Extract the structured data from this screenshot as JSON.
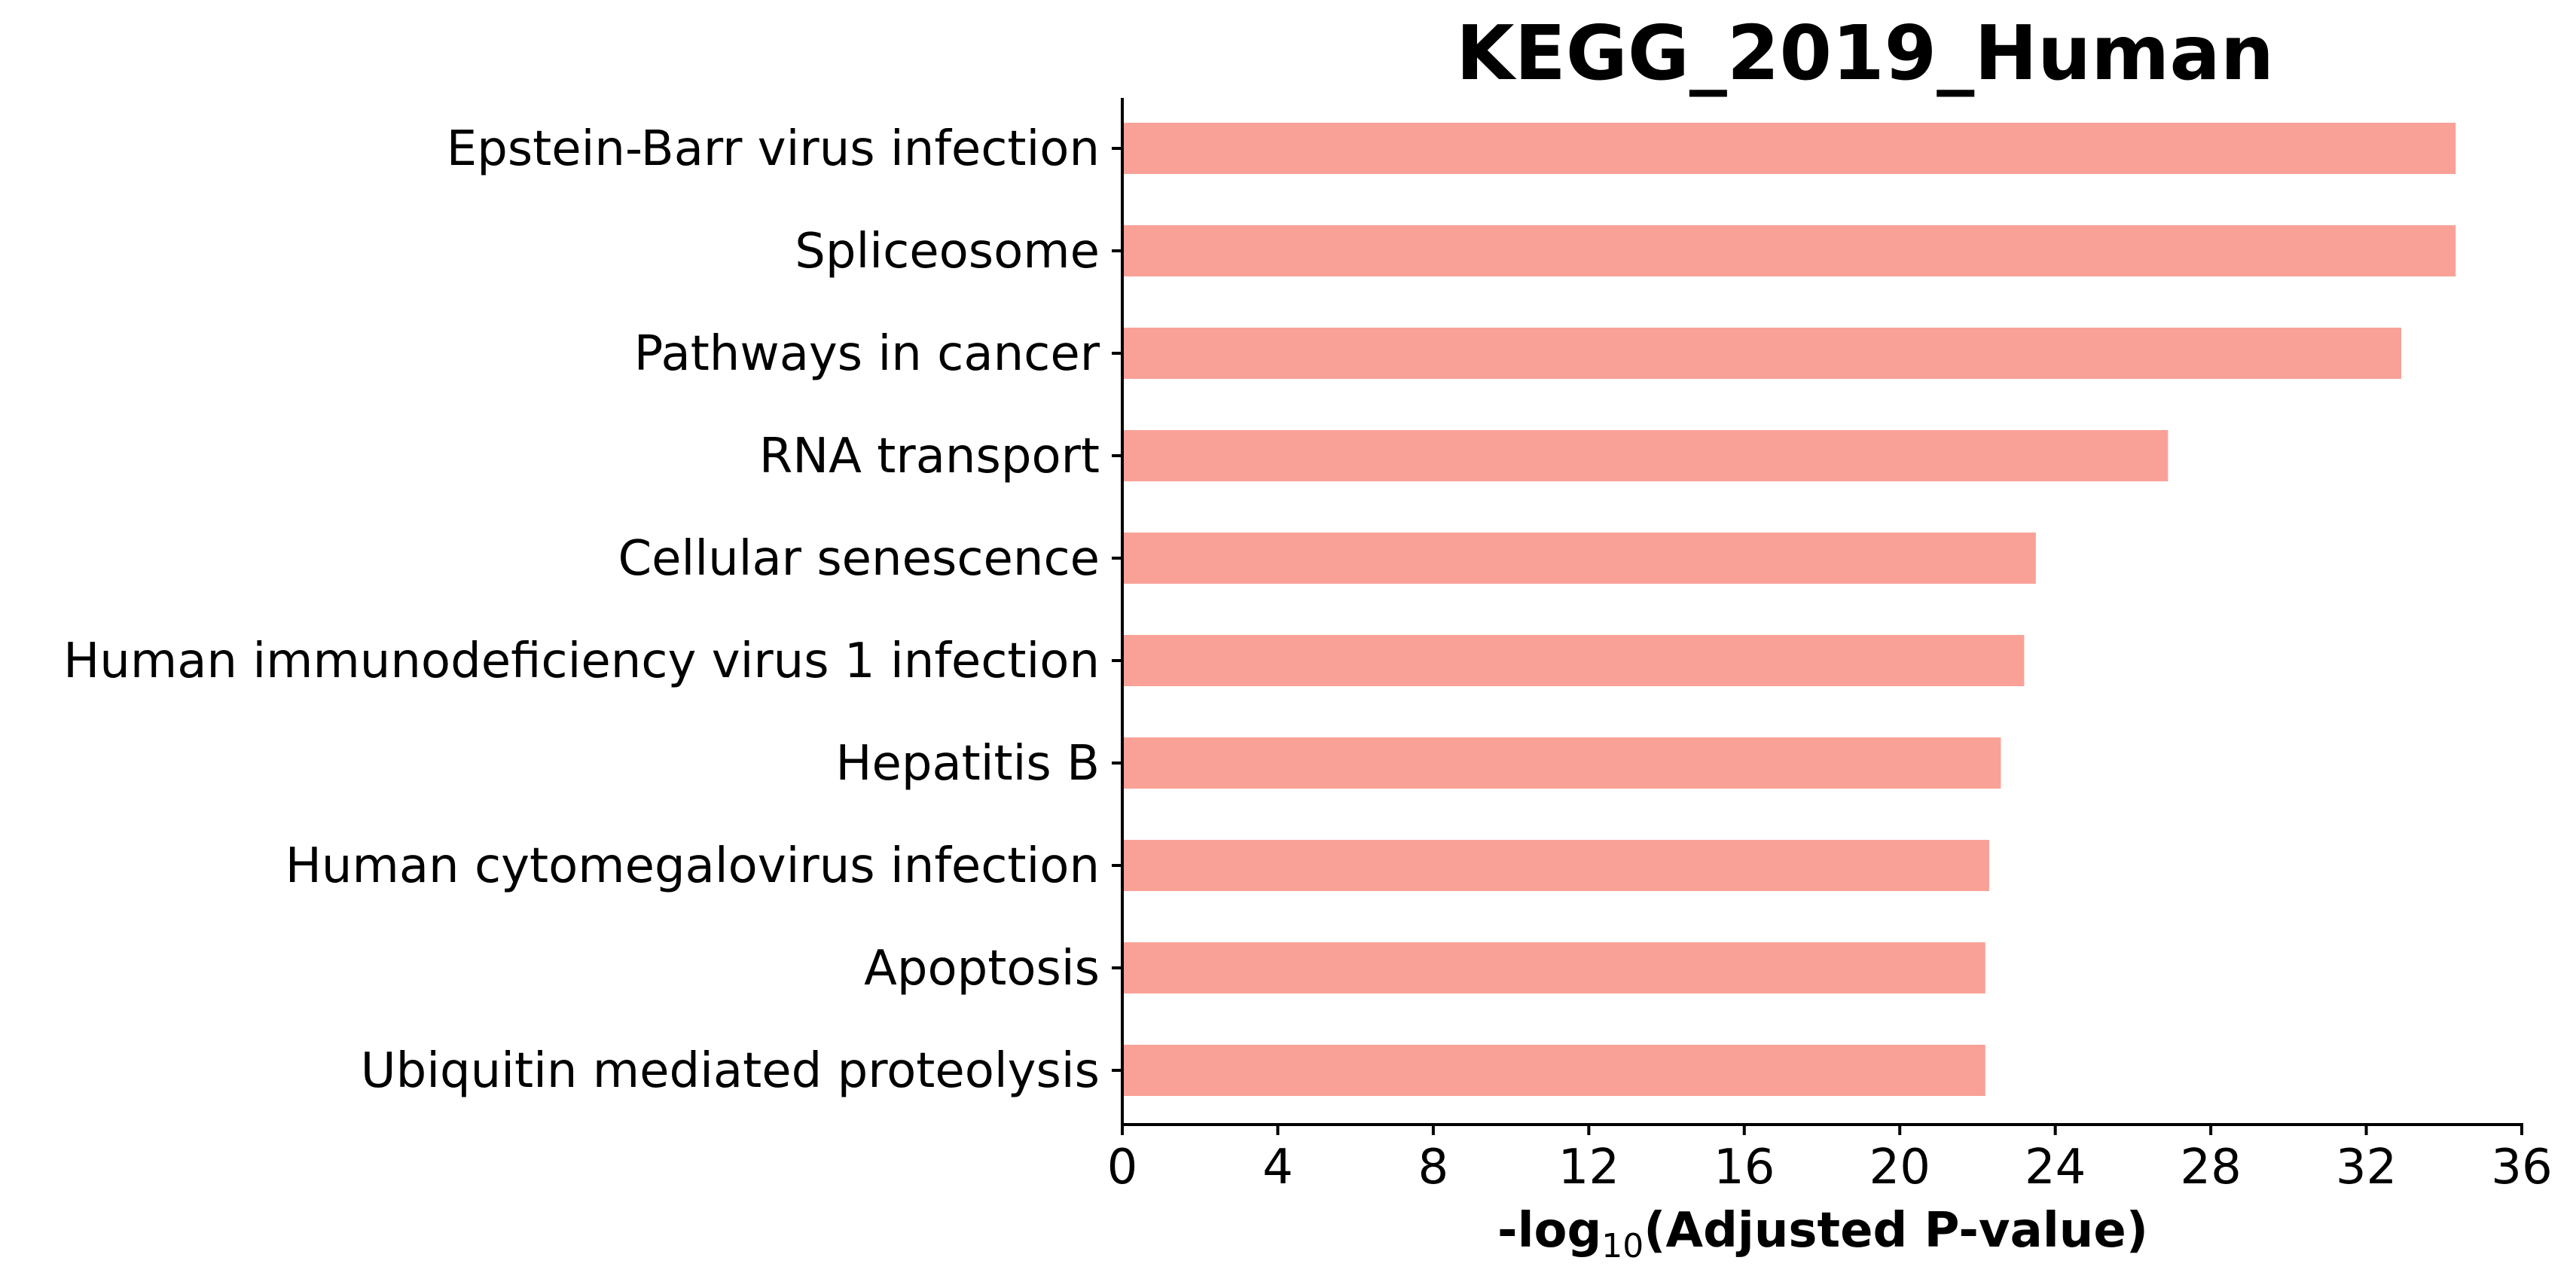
{
  "chart_data": {
    "type": "bar",
    "orientation": "horizontal",
    "title": "KEGG_2019_Human",
    "xlabel": {
      "prefix": "-log",
      "subscript": "10",
      "suffix": "(Adjusted P-value)"
    },
    "ylabel": "",
    "categories": [
      "Epstein-Barr virus infection",
      "Spliceosome",
      "Pathways in cancer",
      "RNA transport",
      "Cellular senescence",
      "Human immunodeficiency virus 1 infection",
      "Hepatitis B",
      "Human cytomegalovirus infection",
      "Apoptosis",
      "Ubiquitin mediated proteolysis"
    ],
    "values": [
      34.3,
      34.3,
      32.9,
      26.9,
      23.5,
      23.2,
      22.6,
      22.3,
      22.2,
      22.2
    ],
    "xlim": [
      0,
      36
    ],
    "xticks": [
      "0",
      "4",
      "8",
      "12",
      "16",
      "20",
      "24",
      "28",
      "32",
      "36"
    ],
    "bar_color": "#f9a197",
    "grid": false,
    "legend": "none"
  }
}
